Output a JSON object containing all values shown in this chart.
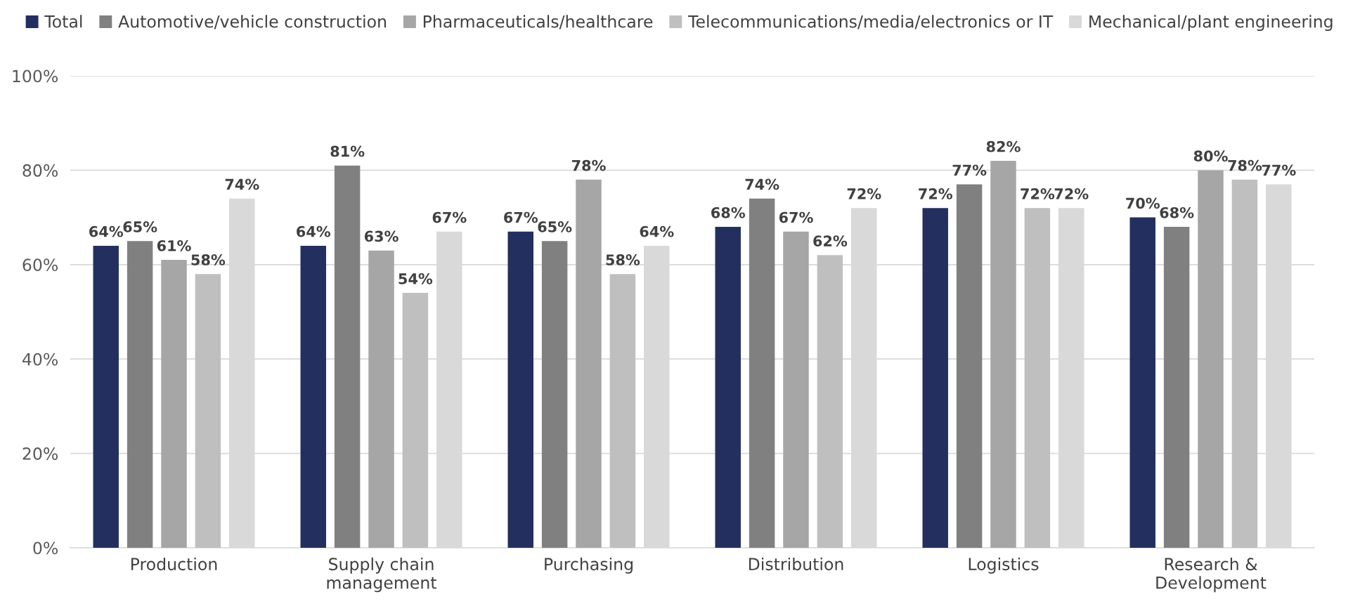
{
  "chart_data": {
    "type": "bar",
    "categories": [
      "Production",
      "Supply chain\nmanagement",
      "Purchasing",
      "Distribution",
      "Logistics",
      "Research &\nDevelopment"
    ],
    "series": [
      {
        "name": "Total",
        "color": "#23305f",
        "values": [
          64,
          64,
          67,
          68,
          72,
          70
        ],
        "value_labels": [
          "64%",
          "64%",
          "67%",
          "68%",
          "72%",
          "70%"
        ]
      },
      {
        "name": "Automotive/vehicle construction",
        "color": "#808080",
        "values": [
          65,
          81,
          65,
          74,
          77,
          68
        ],
        "value_labels": [
          "65%",
          "81%",
          "65%",
          "74%",
          "77%",
          "68%"
        ]
      },
      {
        "name": "Pharmaceuticals/healthcare",
        "color": "#a6a6a6",
        "values": [
          61,
          63,
          78,
          67,
          82,
          80
        ],
        "value_labels": [
          "61%",
          "63%",
          "78%",
          "67%",
          "82%",
          "80%"
        ]
      },
      {
        "name": "Telecommunications/media/electronics or IT",
        "color": "#bfbfbf",
        "values": [
          58,
          54,
          58,
          62,
          72,
          78
        ],
        "value_labels": [
          "58%",
          "54%",
          "58%",
          "62%",
          "72%",
          "78%"
        ]
      },
      {
        "name": "Mechanical/plant engineering",
        "color": "#d9d9d9",
        "values": [
          74,
          67,
          64,
          72,
          72,
          77
        ],
        "value_labels": [
          "74%",
          "67%",
          "64%",
          "72%",
          "72%",
          "77%"
        ]
      }
    ],
    "ylim": [
      0,
      100
    ],
    "yticks": [
      {
        "value": 0,
        "label": "0%"
      },
      {
        "value": 20,
        "label": "20%"
      },
      {
        "value": 40,
        "label": "40%"
      },
      {
        "value": 60,
        "label": "60%"
      },
      {
        "value": 80,
        "label": "80%"
      },
      {
        "value": 100,
        "label": "100%"
      }
    ],
    "grid": "y",
    "legend": "top"
  }
}
